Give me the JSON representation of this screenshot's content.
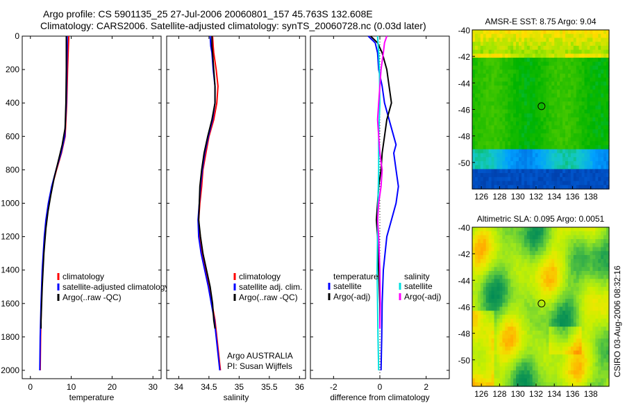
{
  "title_line1": "Argo profile: CS 5901135_25 27-Jul-2006 20060801_157 45.763S 132.608E",
  "title_line2": "Climatology: CARS2006. Satellite-adjusted climatology: synTS_20060728.nc (0.03d later)",
  "side_stamp": "CSIRO 03-Aug-2006 08:32:16",
  "chart_data": [
    {
      "type": "line",
      "id": "temperature",
      "xlabel": "temperature",
      "ylabel": "",
      "xlim": [
        -2,
        32
      ],
      "ylim": [
        2050,
        0
      ],
      "xticks": [
        "0",
        "10",
        "20",
        "30"
      ],
      "yticks": [
        "0",
        "200",
        "400",
        "600",
        "800",
        "1000",
        "1200",
        "1400",
        "1600",
        "1800",
        "2000"
      ],
      "legend": [
        "climatology",
        "satellite-adjusted climatology",
        "Argo(..raw -QC)"
      ],
      "series": [
        {
          "name": "climatology",
          "color": "#ff0000",
          "depth": [
            0,
            60,
            200,
            400,
            600,
            700,
            800,
            900,
            1000,
            1100,
            1200,
            1400,
            1600,
            1800,
            2000
          ],
          "values": [
            9.4,
            9.3,
            9.1,
            8.9,
            8.5,
            7.6,
            6.4,
            5.3,
            4.5,
            3.9,
            3.5,
            3.0,
            2.7,
            2.5,
            2.4
          ]
        },
        {
          "name": "satellite-adjusted climatology",
          "color": "#0000ff",
          "depth": [
            0,
            60,
            200,
            400,
            600,
            700,
            800,
            900,
            1000,
            1100,
            1200,
            1400,
            1600,
            1800,
            2000
          ],
          "values": [
            9.0,
            9.0,
            8.9,
            8.8,
            8.4,
            7.5,
            6.3,
            5.2,
            4.4,
            3.8,
            3.4,
            2.9,
            2.6,
            2.4,
            2.3
          ]
        },
        {
          "name": "Argo(..raw -QC)",
          "color": "#000000",
          "depth": [
            0,
            60,
            200,
            400,
            550,
            650,
            750,
            850,
            950,
            1050,
            1150,
            1300,
            1500,
            1700,
            1750
          ],
          "values": [
            8.8,
            8.8,
            8.8,
            8.7,
            8.5,
            7.8,
            6.8,
            5.8,
            5.0,
            4.3,
            3.8,
            3.3,
            2.9,
            2.6,
            2.6
          ]
        }
      ]
    },
    {
      "type": "line",
      "id": "salinity",
      "xlabel": "salinity",
      "ylabel": "",
      "xlim": [
        33.8,
        36.1
      ],
      "ylim": [
        2050,
        0
      ],
      "xticks": [
        "34",
        "34.5",
        "35",
        "35.5",
        "36"
      ],
      "legend": [
        "climatology",
        "satellite adj. clim.",
        "Argo(..raw -QC)"
      ],
      "annotation": [
        "Argo AUSTRALIA",
        "PI: Susan Wijffels"
      ],
      "series": [
        {
          "name": "climatology",
          "color": "#ff0000",
          "depth": [
            0,
            60,
            100,
            200,
            300,
            400,
            500,
            600,
            700,
            800,
            900,
            1000,
            1100,
            1200,
            1300,
            1400,
            1500,
            1600,
            1700,
            1800,
            1900,
            2000
          ],
          "values": [
            34.56,
            34.57,
            34.58,
            34.62,
            34.65,
            34.63,
            34.58,
            34.5,
            34.45,
            34.4,
            34.38,
            34.35,
            34.33,
            34.34,
            34.38,
            34.44,
            34.5,
            34.55,
            34.6,
            34.63,
            34.66,
            34.69
          ]
        },
        {
          "name": "satellite adj. clim.",
          "color": "#0000ff",
          "depth": [
            0,
            60,
            100,
            200,
            300,
            400,
            500,
            600,
            700,
            800,
            900,
            1000,
            1100,
            1200,
            1300,
            1400,
            1500,
            1600,
            1700,
            1800,
            1900,
            2000
          ],
          "values": [
            34.52,
            34.53,
            34.55,
            34.57,
            34.6,
            34.6,
            34.56,
            34.49,
            34.43,
            34.39,
            34.36,
            34.34,
            34.32,
            34.33,
            34.37,
            34.43,
            34.49,
            34.54,
            34.59,
            34.62,
            34.65,
            34.68
          ]
        },
        {
          "name": "Argo(..raw -QC)",
          "color": "#000000",
          "depth": [
            0,
            60,
            100,
            200,
            300,
            400,
            500,
            600,
            700,
            800,
            900,
            1000,
            1100,
            1200,
            1300,
            1400,
            1500,
            1600,
            1700,
            1750
          ],
          "values": [
            34.55,
            34.55,
            34.56,
            34.58,
            34.6,
            34.6,
            34.55,
            34.48,
            34.42,
            34.38,
            34.35,
            34.34,
            34.33,
            34.36,
            34.4,
            34.46,
            34.52,
            34.56,
            34.58,
            34.6
          ]
        }
      ]
    },
    {
      "type": "line",
      "id": "difference",
      "xlabel": "difference from climatology",
      "ylabel": "",
      "xlim": [
        -3,
        3
      ],
      "ylim": [
        2050,
        0
      ],
      "xticks": [
        "-2",
        "0",
        "2"
      ],
      "legend_headers": [
        "temperature",
        "salinity"
      ],
      "legend": [
        "satellite",
        "Argo(-adj)",
        "satellite",
        "Argo(-adj)"
      ],
      "series": [
        {
          "name": "temperature satellite",
          "color": "#0000ff",
          "depth": [
            0,
            40,
            100,
            200,
            300,
            400,
            500,
            600,
            650,
            700,
            800,
            900,
            1000,
            1100,
            1200,
            1400,
            1600,
            1800,
            2000
          ],
          "values": [
            -0.5,
            -0.2,
            -0.1,
            -0.05,
            0.1,
            0.2,
            0.4,
            0.6,
            0.7,
            0.6,
            0.7,
            0.8,
            0.7,
            0.5,
            0.3,
            0.15,
            0.1,
            0.08,
            0.05
          ]
        },
        {
          "name": "temperature Argo(-adj)",
          "color": "#000000",
          "depth": [
            0,
            40,
            100,
            200,
            300,
            400,
            500,
            600,
            700,
            800,
            900,
            1000,
            1100,
            1200,
            1400,
            1600,
            1750
          ],
          "values": [
            -0.4,
            -0.1,
            0.1,
            0.3,
            0.4,
            0.5,
            0.3,
            0.2,
            0.1,
            0.05,
            -0.05,
            -0.1,
            -0.15,
            -0.1,
            -0.05,
            0.0,
            0.0
          ]
        },
        {
          "name": "salinity satellite",
          "color": "#00e0e0",
          "depth": [
            0,
            100,
            200,
            400,
            600,
            800,
            1000,
            1200,
            1400,
            1600,
            1800,
            2000
          ],
          "values": [
            -0.1,
            -0.05,
            -0.02,
            0.0,
            -0.05,
            -0.05,
            -0.08,
            -0.1,
            -0.12,
            -0.1,
            -0.08,
            -0.05
          ]
        },
        {
          "name": "salinity Argo(-adj)",
          "color": "#ff00ff",
          "depth": [
            0,
            40,
            100,
            200,
            300,
            400,
            500,
            600,
            700,
            800,
            900,
            1000,
            1100,
            1200,
            1400,
            1600,
            1750
          ],
          "values": [
            0.3,
            0.2,
            0.15,
            0.05,
            0.0,
            -0.05,
            -0.1,
            -0.05,
            0.0,
            0.1,
            0.05,
            -0.05,
            -0.1,
            -0.05,
            0.0,
            0.02,
            0.0
          ]
        }
      ]
    },
    {
      "type": "heatmap",
      "id": "sst_map",
      "title": "AMSR-E SST: 8.75  Argo: 9.04",
      "xlim": [
        125,
        140
      ],
      "ylim": [
        -52,
        -40
      ],
      "xticks": [
        "126",
        "128",
        "130",
        "132",
        "134",
        "136",
        "138"
      ],
      "yticks": [
        "-40",
        "-42",
        "-44",
        "-46",
        "-48",
        "-50"
      ],
      "marker": {
        "lon": 132.6,
        "lat": -45.76
      },
      "colormap_stops": [
        "#002a8c",
        "#005ad2",
        "#00a0ff",
        "#14c8c8",
        "#00b400",
        "#46c800",
        "#a0e600",
        "#ffe100",
        "#ffa000"
      ]
    },
    {
      "type": "heatmap",
      "id": "sla_map",
      "title": "Altimetric SLA: 0.095  Argo: 0.0051",
      "xlim": [
        125,
        140
      ],
      "ylim": [
        -52,
        -40
      ],
      "xticks": [
        "126",
        "128",
        "130",
        "132",
        "134",
        "136",
        "138"
      ],
      "yticks": [
        "-40",
        "-42",
        "-44",
        "-46",
        "-48",
        "-50"
      ],
      "marker": {
        "lon": 132.6,
        "lat": -45.76
      },
      "colormap_stops": [
        "#008a55",
        "#1ea050",
        "#5cc83c",
        "#9be61e",
        "#c8f000",
        "#f0e600",
        "#ffb400",
        "#ff8c00"
      ]
    }
  ]
}
